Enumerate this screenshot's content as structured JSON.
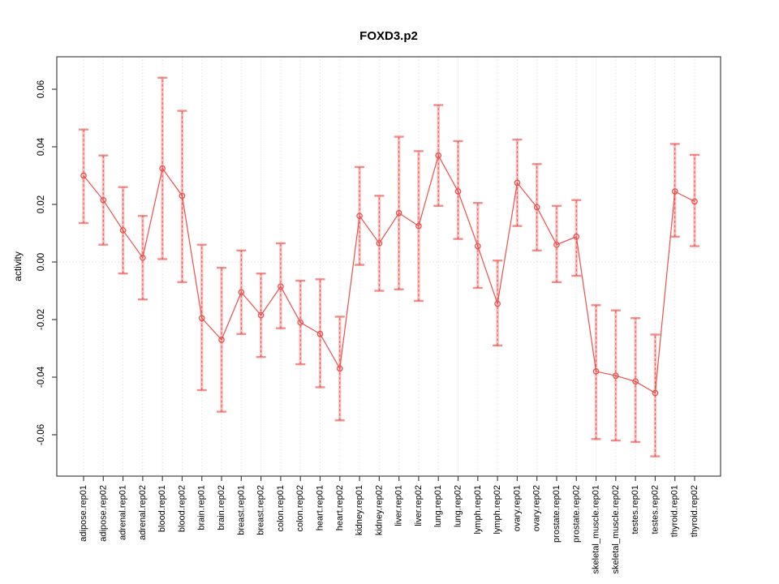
{
  "figure": {
    "title": "FOXD3.p2"
  },
  "chart_data": {
    "type": "line",
    "title": "FOXD3.p2",
    "xlabel": "",
    "ylabel": "activity",
    "ylim": [
      -0.074,
      0.071
    ],
    "yticks": [
      0.06,
      0.04,
      0.02,
      0.0,
      -0.02,
      -0.04,
      -0.06
    ],
    "ytick_labels": [
      "0.06",
      "0.04",
      "0.02",
      "0.00",
      "-0.02",
      "-0.04",
      "-0.06"
    ],
    "grid": "dotted vertical line per category, dotted horizontal line at zero",
    "legend_position": "none",
    "marker": "open-circle",
    "error_bars": true,
    "categories": [
      "adipose.rep01",
      "adipose.rep02",
      "adrenal.rep01",
      "adrenal.rep02",
      "blood.rep01",
      "blood.rep02",
      "brain.rep01",
      "brain.rep02",
      "breast.rep01",
      "breast.rep02",
      "colon.rep01",
      "colon.rep02",
      "heart.rep01",
      "heart.rep02",
      "kidney.rep01",
      "kidney.rep02",
      "liver.rep01",
      "liver.rep02",
      "lung.rep01",
      "lung.rep02",
      "lymph.rep01",
      "lymph.rep02",
      "ovary.rep01",
      "ovary.rep02",
      "prostate.rep01",
      "prostate.rep02",
      "skeletal_muscle.rep01",
      "skeletal_muscle.rep02",
      "testes.rep01",
      "testes.rep02",
      "thyroid.rep01",
      "thyroid.rep02"
    ],
    "series": [
      {
        "name": "FOXD3.p2 activity",
        "values": [
          0.03,
          0.0215,
          0.011,
          0.0015,
          0.0325,
          0.023,
          -0.0195,
          -0.027,
          -0.0105,
          -0.0185,
          -0.0085,
          -0.021,
          -0.025,
          -0.037,
          0.016,
          0.0065,
          0.017,
          0.0125,
          0.037,
          0.0245,
          0.0055,
          -0.0145,
          0.0275,
          0.019,
          0.006,
          0.0088,
          -0.038,
          -0.0395,
          -0.0415,
          -0.0455,
          0.0245,
          0.021
        ],
        "ci_low": [
          0.0135,
          0.006,
          -0.004,
          -0.013,
          0.001,
          -0.007,
          -0.0445,
          -0.052,
          -0.025,
          -0.033,
          -0.023,
          -0.0355,
          -0.0435,
          -0.055,
          -0.001,
          -0.01,
          -0.0095,
          -0.0135,
          0.0195,
          0.008,
          -0.009,
          -0.029,
          0.0125,
          0.004,
          -0.007,
          -0.0048,
          -0.0615,
          -0.062,
          -0.0625,
          -0.0675,
          0.0088,
          0.0055
        ],
        "ci_high": [
          0.046,
          0.037,
          0.026,
          0.016,
          0.064,
          0.0525,
          0.006,
          -0.002,
          0.004,
          -0.004,
          0.0065,
          -0.0065,
          -0.006,
          -0.019,
          0.033,
          0.023,
          0.0435,
          0.0385,
          0.0545,
          0.042,
          0.0205,
          0.0005,
          0.0425,
          0.034,
          0.0195,
          0.0215,
          -0.015,
          -0.0168,
          -0.0195,
          -0.0252,
          0.041,
          0.0372
        ]
      }
    ],
    "colors": {
      "line": "#ee4f4c",
      "errorbar_band": "rgba(238,79,76,0.35)",
      "errorbar_cap": "rgba(238,79,76,0.65)",
      "grid": "#d9d9d9",
      "axis": "#444444",
      "text": "#000000",
      "background": "#ffffff"
    }
  }
}
